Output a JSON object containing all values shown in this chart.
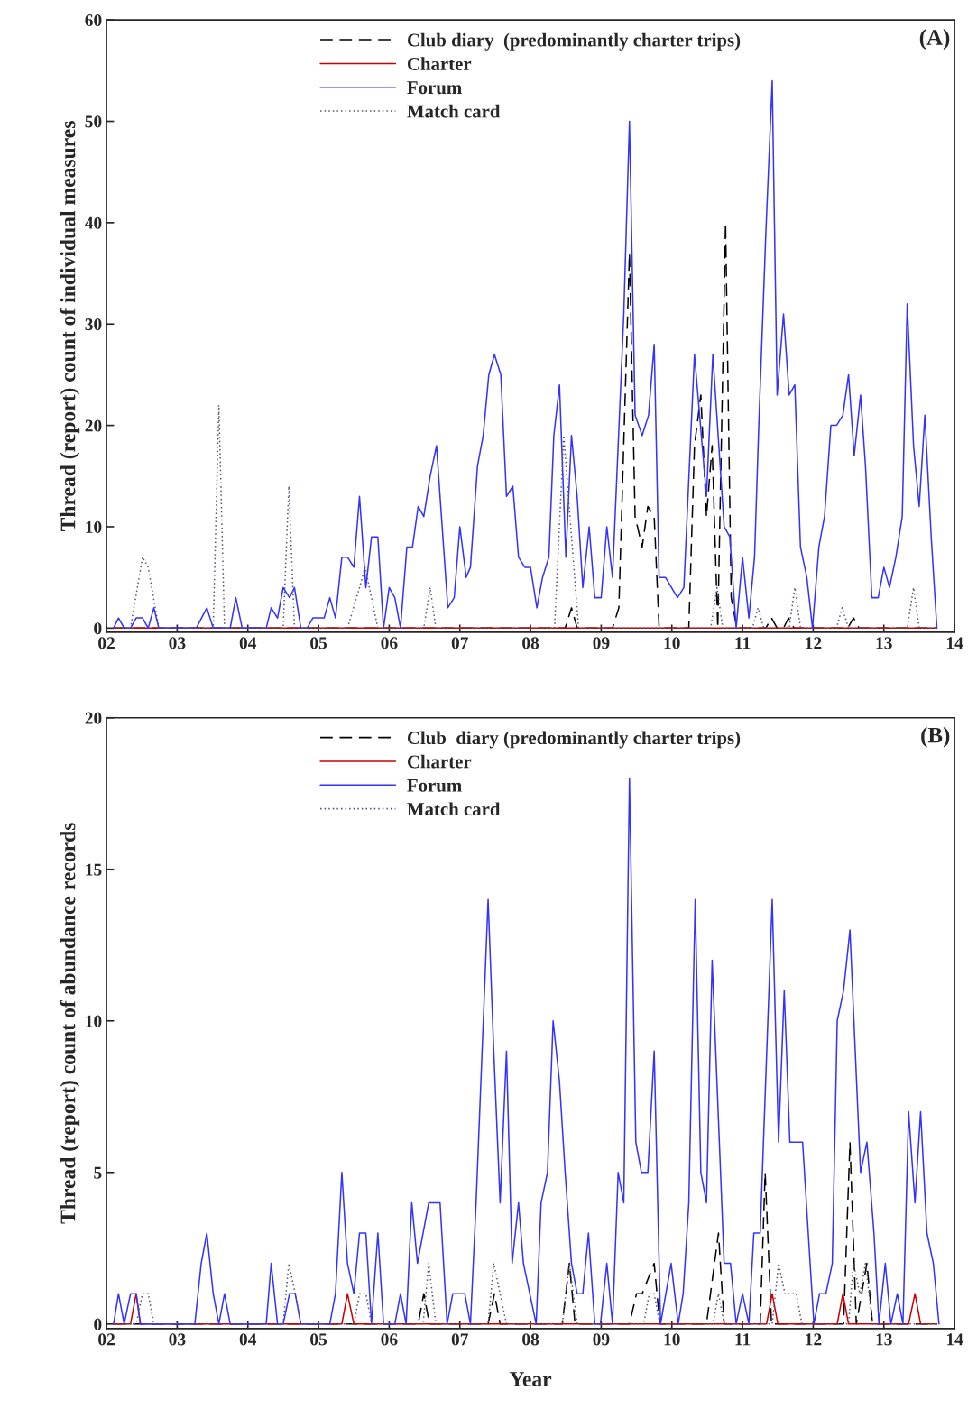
{
  "chart_data": [
    {
      "type": "line",
      "ylabel": "Thread (report) count of individual measures",
      "annotations": [
        "(A)"
      ],
      "xlim": [
        2,
        14
      ],
      "ylim": [
        -0.4,
        60
      ],
      "xticks": [
        {
          "value": 2,
          "label": "02"
        },
        {
          "value": 3,
          "label": "03"
        },
        {
          "value": 4,
          "label": "04"
        },
        {
          "value": 5,
          "label": "05"
        },
        {
          "value": 6,
          "label": "06"
        },
        {
          "value": 7,
          "label": "07"
        },
        {
          "value": 8,
          "label": "08"
        },
        {
          "value": 9,
          "label": "09"
        },
        {
          "value": 10,
          "label": "10"
        },
        {
          "value": 11,
          "label": "11"
        },
        {
          "value": 12,
          "label": "12"
        },
        {
          "value": 13,
          "label": "13"
        },
        {
          "value": 14,
          "label": "14"
        }
      ],
      "yticks": [
        0,
        10,
        20,
        30,
        40,
        50,
        60
      ],
      "grid": false,
      "legend": "top",
      "marker": "none",
      "series": [
        {
          "name": "Club diary  (predominantly charter trips)",
          "color": "#000000",
          "line_style": "dashed",
          "x": [
            2.1,
            8.49,
            8.58,
            8.66,
            9.16,
            9.25,
            9.4,
            9.48,
            9.58,
            9.66,
            9.75,
            9.82,
            10.24,
            10.32,
            10.41,
            10.49,
            10.57,
            10.65,
            10.76,
            10.84,
            10.92,
            11.33,
            11.41,
            11.49,
            11.58,
            11.65,
            11.73,
            12.49,
            12.57,
            12.65,
            13.75
          ],
          "values": [
            0,
            0,
            2,
            0,
            0,
            2,
            37,
            11,
            8,
            12,
            11,
            0,
            0,
            18,
            23,
            11,
            18,
            0,
            40,
            3,
            0,
            0,
            1,
            0,
            0,
            1,
            0,
            0,
            1,
            0,
            0
          ]
        },
        {
          "name": "Charter",
          "color": "#cc0000",
          "line_style": "solid",
          "x": [
            2.1,
            13.75
          ],
          "values": [
            0,
            0
          ]
        },
        {
          "name": "Forum",
          "color": "#3333ff",
          "line_style": "solid",
          "x": [
            2.1,
            2.17,
            2.25,
            2.34,
            2.42,
            2.51,
            2.59,
            2.67,
            2.74,
            3.27,
            3.42,
            3.51,
            3.75,
            3.83,
            3.92,
            4.26,
            4.33,
            4.42,
            4.5,
            4.59,
            4.66,
            4.75,
            4.84,
            4.92,
            5.08,
            5.16,
            5.24,
            5.33,
            5.41,
            5.5,
            5.58,
            5.67,
            5.75,
            5.84,
            5.92,
            6.0,
            6.08,
            6.16,
            6.25,
            6.33,
            6.41,
            6.49,
            6.58,
            6.67,
            6.83,
            6.92,
            7.0,
            7.09,
            7.15,
            7.25,
            7.33,
            7.41,
            7.49,
            7.58,
            7.66,
            7.75,
            7.83,
            7.92,
            8.0,
            8.09,
            8.17,
            8.26,
            8.33,
            8.41,
            8.5,
            8.58,
            8.66,
            8.74,
            8.83,
            8.91,
            9.0,
            9.08,
            9.16,
            9.32,
            9.4,
            9.48,
            9.58,
            9.67,
            9.75,
            9.82,
            9.91,
            10.08,
            10.17,
            10.32,
            10.49,
            10.58,
            10.74,
            10.82,
            10.91,
            11.0,
            11.09,
            11.17,
            11.23,
            11.33,
            11.42,
            11.49,
            11.58,
            11.66,
            11.74,
            11.82,
            11.91,
            11.99,
            12.08,
            12.16,
            12.25,
            12.33,
            12.42,
            12.5,
            12.58,
            12.67,
            12.74,
            12.83,
            12.92,
            13.0,
            13.08,
            13.17,
            13.26,
            13.33,
            13.42,
            13.5,
            13.58,
            13.67,
            13.75
          ],
          "values": [
            0,
            1,
            0,
            0,
            1,
            1,
            0,
            2,
            0,
            0,
            2,
            0,
            0,
            3,
            0,
            0,
            2,
            1,
            4,
            3,
            4,
            0,
            0,
            1,
            1,
            3,
            1,
            7,
            7,
            6,
            13,
            4,
            9,
            9,
            0,
            4,
            3,
            0,
            8,
            8,
            12,
            11,
            15,
            18,
            2,
            3,
            10,
            5,
            6,
            16,
            19,
            25,
            27,
            25,
            13,
            14,
            7,
            6,
            6,
            2,
            5,
            7,
            19,
            24,
            7,
            19,
            13,
            4,
            10,
            3,
            3,
            10,
            5,
            31,
            50,
            21,
            19,
            21,
            28,
            5,
            5,
            3,
            4,
            27,
            13,
            27,
            10,
            9,
            0,
            7,
            1,
            7,
            20,
            39,
            54,
            23,
            31,
            23,
            24,
            8,
            5,
            0,
            8,
            11,
            20,
            20,
            21,
            25,
            17,
            23,
            16,
            3,
            3,
            6,
            4,
            7,
            11,
            32,
            18,
            12,
            21,
            9,
            0
          ]
        },
        {
          "name": "Match card",
          "color": "#555577",
          "line_style": "dotted",
          "x": [
            2.1,
            2.34,
            2.51,
            2.59,
            2.74,
            3.51,
            3.59,
            3.67,
            4.5,
            4.58,
            4.66,
            5.41,
            5.58,
            5.66,
            5.84,
            6.49,
            6.58,
            6.66,
            8.34,
            8.47,
            8.68,
            10.55,
            10.64,
            10.72,
            11.14,
            11.22,
            11.3,
            11.66,
            11.74,
            11.82,
            12.33,
            12.41,
            12.5,
            13.33,
            13.42,
            13.5,
            13.75
          ],
          "values": [
            0,
            0,
            7,
            6,
            0,
            0,
            22,
            0,
            0,
            14,
            0,
            0,
            4,
            6,
            0,
            0,
            4,
            0,
            0,
            19,
            0,
            0,
            4,
            0,
            0,
            2,
            0,
            0,
            4,
            0,
            0,
            2,
            0,
            0,
            4,
            0,
            0
          ]
        }
      ]
    },
    {
      "type": "line",
      "xlabel": "Year",
      "ylabel": "Thread (report) count of abundance records",
      "annotations": [
        "(B)"
      ],
      "xlim": [
        2,
        14
      ],
      "ylim": [
        -0.15,
        20
      ],
      "xticks": [
        {
          "value": 2,
          "label": "02"
        },
        {
          "value": 3,
          "label": "03"
        },
        {
          "value": 4,
          "label": "04"
        },
        {
          "value": 5,
          "label": "05"
        },
        {
          "value": 6,
          "label": "06"
        },
        {
          "value": 7,
          "label": "07"
        },
        {
          "value": 8,
          "label": "08"
        },
        {
          "value": 9,
          "label": "09"
        },
        {
          "value": 10,
          "label": "10"
        },
        {
          "value": 11,
          "label": "11"
        },
        {
          "value": 12,
          "label": "12"
        },
        {
          "value": 13,
          "label": "13"
        },
        {
          "value": 14,
          "label": "14"
        }
      ],
      "yticks": [
        0,
        5,
        10,
        15,
        20
      ],
      "grid": false,
      "legend": "top",
      "marker": "none",
      "series": [
        {
          "name": "Club  diary (predominantly charter trips)",
          "color": "#000000",
          "line_style": "dashed",
          "x": [
            2.1,
            6.41,
            6.49,
            6.57,
            7.4,
            7.49,
            7.57,
            8.45,
            8.55,
            8.63,
            9.4,
            9.5,
            9.58,
            9.75,
            9.83,
            10.49,
            10.66,
            10.74,
            11.25,
            11.32,
            11.41,
            12.43,
            12.52,
            12.61,
            12.76,
            12.84,
            13.75
          ],
          "values": [
            0,
            0,
            1,
            0,
            0,
            1,
            0,
            0,
            2,
            0,
            0,
            1,
            1,
            2,
            0,
            0,
            3,
            0,
            0,
            5,
            0,
            0,
            6,
            0,
            2,
            0,
            0
          ]
        },
        {
          "name": "Charter",
          "color": "#cc0000",
          "line_style": "solid",
          "x": [
            2.1,
            2.34,
            2.42,
            2.48,
            5.33,
            5.41,
            5.5,
            11.34,
            11.42,
            11.5,
            12.34,
            12.42,
            12.5,
            13.35,
            13.44,
            13.52,
            13.75
          ],
          "values": [
            0,
            0,
            1,
            0,
            0,
            1,
            0,
            0,
            1,
            0,
            0,
            1,
            0,
            0,
            1,
            0,
            0
          ]
        },
        {
          "name": "Forum",
          "color": "#3333ff",
          "line_style": "solid",
          "x": [
            2.1,
            2.17,
            2.25,
            2.34,
            2.42,
            2.48,
            3.25,
            3.34,
            3.42,
            3.51,
            3.59,
            3.67,
            3.75,
            4.26,
            4.33,
            4.42,
            4.5,
            4.59,
            4.67,
            4.75,
            5.16,
            5.24,
            5.33,
            5.41,
            5.5,
            5.58,
            5.67,
            5.75,
            5.84,
            5.92,
            6.08,
            6.16,
            6.24,
            6.32,
            6.4,
            6.56,
            6.72,
            6.82,
            6.9,
            7.07,
            7.15,
            7.23,
            7.4,
            7.48,
            7.57,
            7.66,
            7.74,
            7.83,
            7.9,
            8.08,
            8.15,
            8.24,
            8.32,
            8.41,
            8.49,
            8.58,
            8.66,
            8.74,
            8.82,
            8.91,
            8.99,
            9.08,
            9.16,
            9.24,
            9.32,
            9.4,
            9.49,
            9.57,
            9.66,
            9.75,
            9.84,
            9.99,
            10.09,
            10.16,
            10.24,
            10.33,
            10.41,
            10.49,
            10.57,
            10.74,
            10.83,
            10.91,
            11.0,
            11.09,
            11.16,
            11.25,
            11.42,
            11.51,
            11.59,
            11.67,
            11.85,
            12.01,
            12.09,
            12.18,
            12.27,
            12.34,
            12.43,
            12.52,
            12.67,
            12.76,
            12.86,
            12.93,
            13.02,
            13.1,
            13.19,
            13.27,
            13.35,
            13.44,
            13.52,
            13.61,
            13.7,
            13.78
          ],
          "values": [
            0,
            1,
            0,
            1,
            1,
            0,
            0,
            2,
            3,
            1,
            0,
            1,
            0,
            0,
            2,
            0,
            0,
            1,
            1,
            0,
            0,
            1,
            5,
            2,
            1,
            3,
            3,
            0,
            3,
            0,
            0,
            1,
            0,
            4,
            2,
            4,
            4,
            0,
            1,
            1,
            0,
            4,
            14,
            9,
            4,
            9,
            2,
            4,
            2,
            0,
            4,
            5,
            10,
            8,
            5,
            2,
            1,
            1,
            3,
            0,
            0,
            2,
            0,
            5,
            4,
            18,
            6,
            5,
            5,
            9,
            0,
            2,
            0,
            1,
            4,
            14,
            5,
            4,
            12,
            2,
            2,
            0,
            1,
            0,
            3,
            3,
            14,
            6,
            11,
            6,
            6,
            0,
            1,
            1,
            2,
            10,
            11,
            13,
            5,
            6,
            3,
            0,
            2,
            0,
            1,
            0,
            7,
            4,
            7,
            3,
            2,
            0
          ]
        },
        {
          "name": "Match card",
          "color": "#555577",
          "line_style": "dotted",
          "x": [
            2.1,
            2.42,
            2.51,
            2.59,
            2.67,
            4.5,
            4.58,
            4.67,
            4.75,
            5.5,
            5.58,
            5.67,
            5.75,
            6.48,
            6.56,
            6.66,
            7.4,
            7.48,
            7.57,
            7.66,
            8.45,
            8.55,
            8.66,
            9.6,
            9.68,
            9.75,
            9.83,
            10.58,
            10.66,
            10.74,
            11.42,
            11.51,
            11.6,
            11.76,
            11.84,
            12.5,
            12.57,
            12.66,
            12.74,
            12.84,
            13.75
          ],
          "values": [
            0,
            0,
            1,
            1,
            0,
            0,
            2,
            1,
            0,
            0,
            1,
            1,
            0,
            0,
            2,
            0,
            0,
            2,
            1,
            0,
            0,
            2,
            0,
            0,
            1,
            1,
            0,
            0,
            1,
            0,
            0,
            2,
            1,
            1,
            0,
            0,
            2,
            1,
            2,
            0,
            0
          ]
        }
      ]
    }
  ]
}
